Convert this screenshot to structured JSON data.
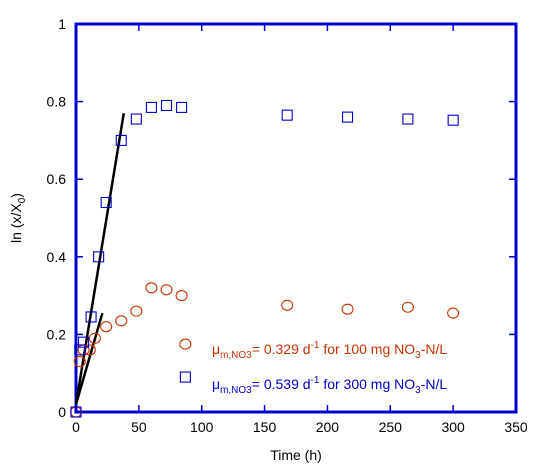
{
  "chart_data": {
    "type": "scatter",
    "xlabel": "Time (h)",
    "ylabel": {
      "main": "ln (x/X",
      "sub": "0",
      "tail": ")"
    },
    "xlim": [
      0,
      350
    ],
    "ylim": [
      0,
      1
    ],
    "x_ticks": [
      0,
      50,
      100,
      150,
      200,
      250,
      300,
      350
    ],
    "y_ticks": [
      0,
      0.2,
      0.4,
      0.6,
      0.8,
      1
    ],
    "x_tick_labels": [
      "0",
      "50",
      "100",
      "150",
      "200",
      "250",
      "300",
      "350"
    ],
    "y_tick_labels": [
      "0",
      "0.2",
      "0.4",
      "0.6",
      "0.8",
      "1"
    ],
    "grid": false,
    "frame_color": "#0000cc",
    "series": [
      {
        "marker": "circle",
        "color": "#cc3300",
        "points": [
          [
            0,
            0.0
          ],
          [
            3,
            0.13
          ],
          [
            6,
            0.16
          ],
          [
            11,
            0.16
          ],
          [
            15,
            0.19
          ],
          [
            24,
            0.22
          ],
          [
            36,
            0.235
          ],
          [
            48,
            0.26
          ],
          [
            60,
            0.32
          ],
          [
            72,
            0.315
          ],
          [
            84,
            0.3
          ],
          [
            87,
            0.175
          ],
          [
            168,
            0.275
          ],
          [
            216,
            0.265
          ],
          [
            264,
            0.27
          ],
          [
            300,
            0.255
          ]
        ]
      },
      {
        "marker": "square",
        "color": "#0000cc",
        "points": [
          [
            0,
            0.0
          ],
          [
            3,
            0.16
          ],
          [
            6,
            0.18
          ],
          [
            12,
            0.245
          ],
          [
            18,
            0.4
          ],
          [
            24,
            0.54
          ],
          [
            36,
            0.7
          ],
          [
            48,
            0.755
          ],
          [
            60,
            0.785
          ],
          [
            72,
            0.79
          ],
          [
            84,
            0.785
          ],
          [
            87,
            0.09
          ],
          [
            168,
            0.765
          ],
          [
            216,
            0.76
          ],
          [
            264,
            0.755
          ],
          [
            300,
            0.752
          ]
        ]
      }
    ],
    "fit_lines": [
      {
        "color": "#000000",
        "x": [
          0,
          38
        ],
        "y": [
          0.02,
          0.77
        ]
      },
      {
        "color": "#000000",
        "x": [
          0,
          21
        ],
        "y": [
          0.02,
          0.255
        ]
      }
    ],
    "annotations": [
      {
        "color": "#cc3300",
        "mu": "μ",
        "mu_sub": "m,NO3",
        "value": "= 0.329 d",
        "exp": "-1",
        "mid": " for 100 mg NO",
        "no3_sub": "3",
        "tail": "-N/L"
      },
      {
        "color": "#0000cc",
        "mu": "μ",
        "mu_sub": "m,NO3",
        "value": "= 0.539 d",
        "exp": "-1",
        "mid": " for 300 mg NO",
        "no3_sub": "3",
        "tail": "-N/L"
      }
    ]
  }
}
